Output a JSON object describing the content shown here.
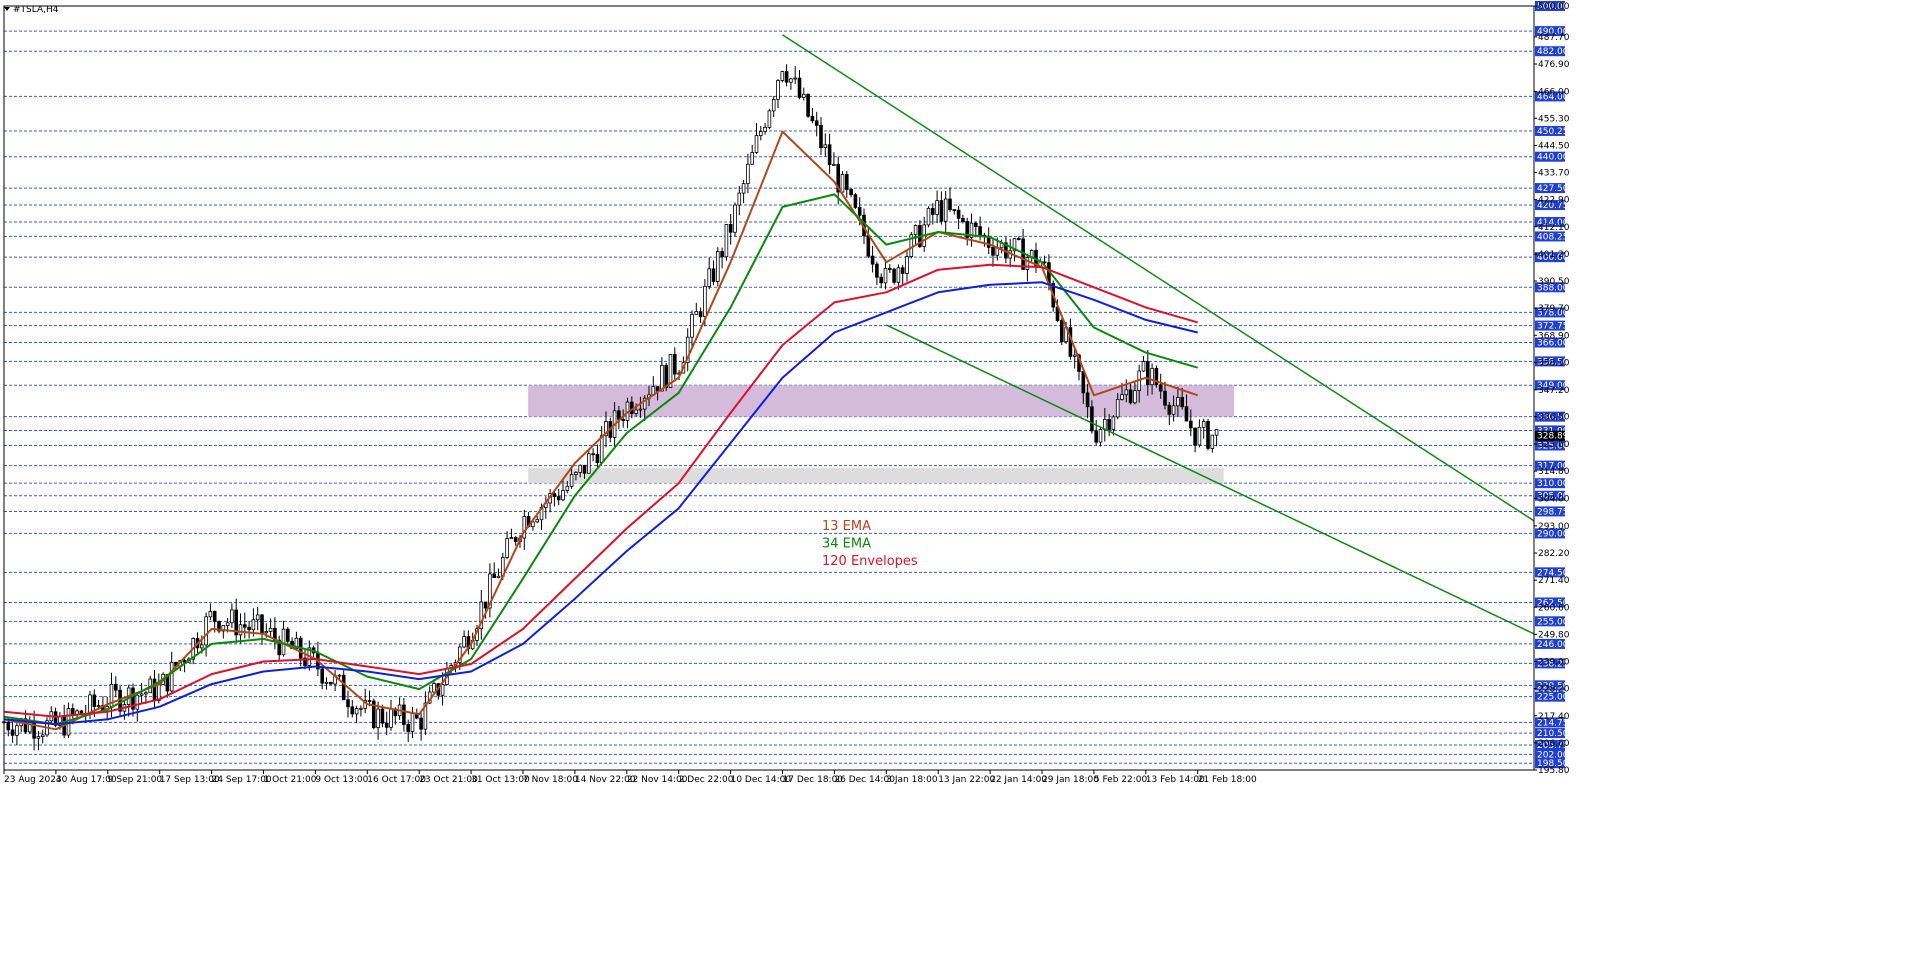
{
  "window": {
    "symbol_label": "#TSLA,H4"
  },
  "chart_data": {
    "type": "candlestick",
    "symbol": "#TSLA",
    "timeframe": "H4",
    "ylim": [
      195.8,
      500.0
    ],
    "x_tick_labels": [
      "23 Aug 2024",
      "30 Aug 17:00",
      "9 Sep 21:00",
      "17 Sep 13:00",
      "24 Sep 17:00",
      "1 Oct 21:00",
      "9 Oct 13:00",
      "16 Oct 17:00",
      "23 Oct 21:00",
      "31 Oct 13:00",
      "7 Nov 18:00",
      "14 Nov 22:00",
      "22 Nov 14:00",
      "2 Dec 22:00",
      "10 Dec 14:00",
      "17 Dec 18:00",
      "26 Dec 14:00",
      "3 Jan 18:00",
      "13 Jan 22:00",
      "22 Jan 14:00",
      "29 Jan 18:00",
      "5 Feb 22:00",
      "13 Feb 14:00",
      "21 Feb 18:00"
    ],
    "y_tick_labels": [
      "500.00",
      "487.70",
      "476.90",
      "466.00",
      "455.30",
      "444.50",
      "433.70",
      "422.90",
      "412.10",
      "401.20",
      "390.50",
      "379.70",
      "368.90",
      "358.10",
      "347.20",
      "336.50",
      "325.60",
      "314.80",
      "304.00",
      "293.00",
      "282.20",
      "271.40",
      "260.60",
      "249.80",
      "239.00",
      "228.20",
      "217.40",
      "206.60",
      "195.80"
    ],
    "horizontal_levels": [
      500.0,
      490.0,
      482.0,
      464.0,
      450.25,
      440.0,
      427.5,
      420.75,
      414.0,
      408.25,
      400.0,
      388.0,
      378.0,
      372.75,
      366.0,
      358.5,
      349.0,
      336.5,
      331.0,
      325.0,
      317.0,
      310.0,
      305.0,
      298.75,
      290.0,
      274.5,
      262.5,
      255.0,
      246.0,
      238.25,
      229.5,
      225.0,
      214.75,
      210.5,
      205.75,
      202.0,
      198.5
    ],
    "current_price": "328.89",
    "price_points": [
      [
        "23 Aug 2024",
        215
      ],
      [
        "30 Aug 17:00",
        213
      ],
      [
        "9 Sep 21:00",
        224
      ],
      [
        "17 Sep 13:00",
        228
      ],
      [
        "24 Sep 17:00",
        257
      ],
      [
        "1 Oct 21:00",
        251
      ],
      [
        "9 Oct 13:00",
        238
      ],
      [
        "16 Oct 17:00",
        218
      ],
      [
        "23 Oct 21:00",
        215
      ],
      [
        "31 Oct 13:00",
        252
      ],
      [
        "7 Nov 18:00",
        296
      ],
      [
        "14 Nov 22:00",
        311
      ],
      [
        "22 Nov 14:00",
        341
      ],
      [
        "2 Dec 22:00",
        358
      ],
      [
        "10 Dec 14:00",
        412
      ],
      [
        "17 Dec 18:00",
        478
      ],
      [
        "26 Dec 14:00",
        434
      ],
      [
        "3 Jan 18:00",
        390
      ],
      [
        "13 Jan 22:00",
        420
      ],
      [
        "22 Jan 14:00",
        406
      ],
      [
        "29 Jan 18:00",
        398
      ],
      [
        "5 Feb 22:00",
        330
      ],
      [
        "13 Feb 14:00",
        355
      ],
      [
        "21 Feb 18:00",
        329
      ]
    ],
    "series": [
      {
        "name": "13 EMA",
        "color": "#b4471a",
        "values": [
          216,
          212,
          222,
          230,
          252,
          250,
          240,
          222,
          218,
          246,
          290,
          318,
          338,
          352,
          398,
          450,
          430,
          398,
          410,
          405,
          396,
          345,
          352,
          345
        ]
      },
      {
        "name": "34 EMA",
        "color": "#0a8a0a",
        "values": [
          217,
          214,
          220,
          231,
          246,
          248,
          243,
          233,
          228,
          240,
          272,
          305,
          330,
          346,
          380,
          420,
          425,
          405,
          410,
          408,
          398,
          372,
          362,
          356
        ]
      },
      {
        "name": "120 Envelopes",
        "color": "#e0102a",
        "values": [
          219,
          217,
          219,
          224,
          234,
          239,
          240,
          237,
          234,
          238,
          252,
          272,
          292,
          310,
          338,
          365,
          382,
          386,
          395,
          397,
          396,
          388,
          380,
          374
        ]
      },
      {
        "name": "",
        "color": "#1020d8",
        "values": [
          216,
          214,
          216,
          221,
          230,
          235,
          237,
          235,
          232,
          235,
          246,
          264,
          283,
          300,
          326,
          352,
          370,
          378,
          386,
          389,
          390,
          383,
          375,
          370
        ]
      }
    ],
    "zones": [
      {
        "name": "resistance-zone",
        "color": "#cfb3d7",
        "from": 336.5,
        "to": 349.0
      },
      {
        "name": "support-zone",
        "color": "#d9d9d9",
        "from": 310.0,
        "to": 316.0
      }
    ],
    "trendlines": [
      {
        "name": "upper-trendline",
        "color": "#118a11",
        "from": [
          "17 Dec 18:00",
          488.5
        ],
        "to": [
          "beyond-right",
          295
        ]
      },
      {
        "name": "lower-trendline",
        "color": "#118a11",
        "from": [
          "3 Jan 18:00",
          373
        ],
        "to": [
          "beyond-right",
          250
        ]
      }
    ],
    "legend": [
      {
        "label": "13 EMA",
        "color": "#b4471a"
      },
      {
        "label": "34 EMA",
        "color": "#0a8a0a"
      },
      {
        "label": "120 Envelopes",
        "color": "#e0102a"
      }
    ],
    "grid": true
  }
}
